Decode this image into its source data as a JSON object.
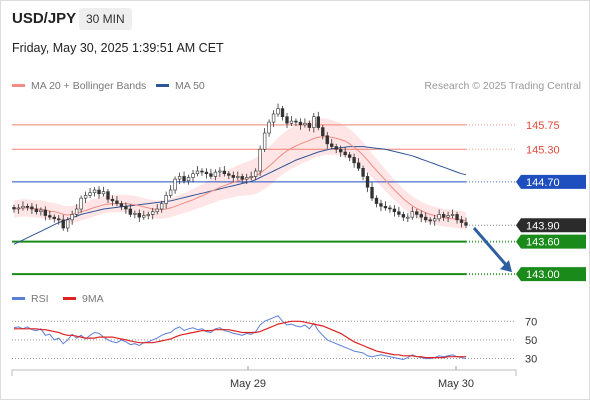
{
  "header": {
    "symbol": "USD/JPY",
    "timeframe": "30 MIN",
    "datetime": "Friday, May 30, 2025 1:39:51 AM CET"
  },
  "legend": {
    "ma20_label": "MA 20 + Bollinger Bands",
    "ma50_label": "MA 50",
    "copyright": "Research © 2025 Trading Central"
  },
  "rsi_legend": {
    "rsi_label": "RSI",
    "ma_label": "9MA"
  },
  "colors": {
    "ma20": "#f28c84",
    "band_fill": "#ffdcdc",
    "ma50": "#2e5597",
    "resistance": "#f08070",
    "pivot": "#1f4fbf",
    "support": "#1a8a1a",
    "current": "#333333",
    "up_candle": "#ffffff",
    "down_candle": "#333333",
    "rsi": "#5b7fd6",
    "rsi_ma": "#dd2222",
    "arrow": "#2f5fa0"
  },
  "chart_data": [
    {
      "type": "candlestick",
      "title": "USD/JPY",
      "ylim": [
        142.8,
        146.3
      ],
      "x_ticks": [
        "May 29",
        "May 30"
      ],
      "levels": [
        {
          "value": 145.75,
          "label": "145.75",
          "kind": "resistance"
        },
        {
          "value": 145.3,
          "label": "145.30",
          "kind": "resistance"
        },
        {
          "value": 144.7,
          "label": "144.70",
          "kind": "pivot"
        },
        {
          "value": 143.9,
          "label": "143.90",
          "kind": "current"
        },
        {
          "value": 143.6,
          "label": "143.60",
          "kind": "support"
        },
        {
          "value": 143.0,
          "label": "143.00",
          "kind": "support"
        }
      ],
      "close": [
        144.2,
        144.22,
        144.25,
        144.24,
        144.2,
        144.15,
        144.18,
        144.08,
        144.05,
        144.02,
        144.0,
        143.85,
        144.0,
        144.1,
        144.2,
        144.4,
        144.45,
        144.5,
        144.55,
        144.48,
        144.52,
        144.38,
        144.35,
        144.3,
        144.25,
        144.2,
        144.1,
        144.12,
        144.05,
        144.08,
        144.1,
        144.15,
        144.2,
        144.3,
        144.45,
        144.55,
        144.75,
        144.8,
        144.72,
        144.78,
        144.85,
        144.9,
        144.88,
        144.85,
        144.8,
        144.88,
        144.9,
        144.85,
        144.82,
        144.78,
        144.8,
        144.75,
        144.78,
        144.8,
        144.9,
        145.3,
        145.6,
        145.8,
        145.95,
        146.05,
        145.9,
        145.78,
        145.82,
        145.8,
        145.75,
        145.78,
        145.7,
        145.9,
        145.7,
        145.55,
        145.4,
        145.35,
        145.3,
        145.25,
        145.2,
        145.15,
        145.05,
        144.95,
        144.8,
        144.6,
        144.4,
        144.3,
        144.25,
        144.22,
        144.2,
        144.15,
        144.1,
        144.05,
        144.05,
        144.15,
        144.1,
        144.05,
        144.0,
        143.98,
        144.02,
        144.1,
        144.05,
        144.08,
        144.1,
        144.0,
        143.95,
        143.9
      ],
      "ma20": [
        144.2,
        144.21,
        144.22,
        144.22,
        144.21,
        144.2,
        144.2,
        144.18,
        144.16,
        144.15,
        144.13,
        144.1,
        144.09,
        144.1,
        144.12,
        144.15,
        144.17,
        144.2,
        144.23,
        144.25,
        144.28,
        144.29,
        144.3,
        144.3,
        144.3,
        144.3,
        144.29,
        144.28,
        144.26,
        144.24,
        144.22,
        144.2,
        144.19,
        144.19,
        144.2,
        144.22,
        144.25,
        144.28,
        144.31,
        144.34,
        144.37,
        144.41,
        144.44,
        144.48,
        144.52,
        144.56,
        144.6,
        144.63,
        144.66,
        144.69,
        144.72,
        144.74,
        144.76,
        144.78,
        144.81,
        144.86,
        144.92,
        144.99,
        145.06,
        145.14,
        145.21,
        145.27,
        145.32,
        145.36,
        145.4,
        145.43,
        145.46,
        145.5,
        145.52,
        145.53,
        145.53,
        145.52,
        145.5,
        145.48,
        145.45,
        145.4,
        145.34,
        145.27,
        145.19,
        145.1,
        145.0,
        144.91,
        144.82,
        144.73,
        144.64,
        144.55,
        144.47,
        144.39,
        144.32,
        144.26,
        144.21,
        144.17,
        144.13,
        144.1,
        144.08,
        144.06,
        144.04,
        144.03,
        144.02,
        144.01,
        144.0,
        143.98
      ],
      "ma50": [
        143.55,
        143.59,
        143.63,
        143.67,
        143.71,
        143.75,
        143.79,
        143.83,
        143.87,
        143.91,
        143.95,
        143.98,
        144.01,
        144.04,
        144.07,
        144.1,
        144.12,
        144.14,
        144.16,
        144.18,
        144.2,
        144.21,
        144.22,
        144.23,
        144.24,
        144.25,
        144.26,
        144.27,
        144.28,
        144.29,
        144.3,
        144.31,
        144.32,
        144.33,
        144.34,
        144.35,
        144.37,
        144.39,
        144.41,
        144.43,
        144.45,
        144.47,
        144.49,
        144.51,
        144.53,
        144.55,
        144.57,
        144.59,
        144.61,
        144.63,
        144.65,
        144.67,
        144.69,
        144.71,
        144.74,
        144.78,
        144.82,
        144.86,
        144.9,
        144.94,
        144.98,
        145.02,
        145.06,
        145.1,
        145.13,
        145.16,
        145.19,
        145.22,
        145.25,
        145.27,
        145.29,
        145.31,
        145.32,
        145.33,
        145.34,
        145.35,
        145.35,
        145.35,
        145.35,
        145.34,
        145.33,
        145.32,
        145.31,
        145.3,
        145.28,
        145.26,
        145.24,
        145.22,
        145.2,
        145.18,
        145.15,
        145.12,
        145.09,
        145.06,
        145.03,
        145.0,
        144.97,
        144.94,
        144.91,
        144.88,
        144.85,
        144.83
      ]
    },
    {
      "type": "line",
      "title": "RSI",
      "ylim": [
        22,
        80
      ],
      "y_ticks": [
        70,
        50,
        30
      ],
      "series": [
        {
          "name": "RSI",
          "values": [
            63,
            64,
            62,
            64,
            61,
            60,
            62,
            55,
            56,
            50,
            52,
            46,
            50,
            56,
            52,
            55,
            51,
            55,
            58,
            57,
            53,
            50,
            48,
            47,
            50,
            48,
            45,
            46,
            44,
            47,
            48,
            50,
            52,
            55,
            57,
            58,
            62,
            64,
            60,
            62,
            63,
            61,
            62,
            59,
            58,
            62,
            63,
            60,
            59,
            57,
            56,
            55,
            57,
            56,
            59,
            66,
            70,
            72,
            74,
            76,
            70,
            66,
            67,
            65,
            64,
            66,
            62,
            68,
            60,
            55,
            50,
            48,
            46,
            44,
            42,
            40,
            38,
            37,
            36,
            33,
            32,
            33,
            34,
            33,
            32,
            31,
            30,
            29,
            31,
            34,
            32,
            31,
            30,
            30,
            31,
            33,
            32,
            33,
            34,
            32,
            31,
            30
          ]
        },
        {
          "name": "9MA",
          "values": [
            62,
            62,
            62,
            62,
            62,
            62,
            61,
            61,
            60,
            59,
            58,
            56,
            55,
            55,
            54,
            53,
            52,
            52,
            52,
            53,
            53,
            53,
            53,
            52,
            51,
            50,
            49,
            48,
            47,
            47,
            47,
            47,
            48,
            49,
            50,
            51,
            53,
            55,
            56,
            57,
            58,
            59,
            60,
            60,
            60,
            61,
            61,
            61,
            61,
            60,
            59,
            58,
            58,
            58,
            58,
            59,
            61,
            63,
            65,
            67,
            68,
            69,
            70,
            70,
            70,
            69,
            68,
            67,
            66,
            65,
            63,
            61,
            59,
            57,
            54,
            51,
            48,
            46,
            44,
            42,
            40,
            38,
            37,
            36,
            35,
            34,
            34,
            33,
            33,
            33,
            32,
            32,
            31,
            31,
            31,
            31,
            31,
            32,
            32,
            32,
            32,
            32
          ]
        }
      ]
    }
  ]
}
